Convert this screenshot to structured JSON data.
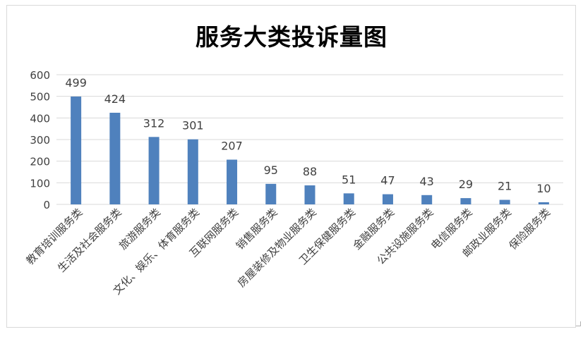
{
  "chart_data": {
    "type": "bar",
    "title": "服务大类投诉量图",
    "xlabel": "",
    "ylabel": "",
    "ylim": [
      0,
      600
    ],
    "yticks": [
      "0",
      "100",
      "200",
      "300",
      "400",
      "500",
      "600"
    ],
    "grid": true,
    "legend": "none",
    "categories": [
      "教育培训服务类",
      "生活及社会服务类",
      "旅游服务类",
      "文化、娱乐、体育服务类",
      "互联网服务类",
      "销售服务类",
      "房屋装修及物业服务类",
      "卫生保健服务类",
      "金融服务类",
      "公共设施服务类",
      "电信服务类",
      "邮政业服务类",
      "保险服务类"
    ],
    "values": [
      499,
      424,
      312,
      301,
      207,
      95,
      88,
      51,
      47,
      43,
      29,
      21,
      10
    ],
    "colors": {
      "bar": "#4f81bd",
      "grid": "#d9d9d9",
      "text": "#404040",
      "title": "#000000"
    }
  }
}
